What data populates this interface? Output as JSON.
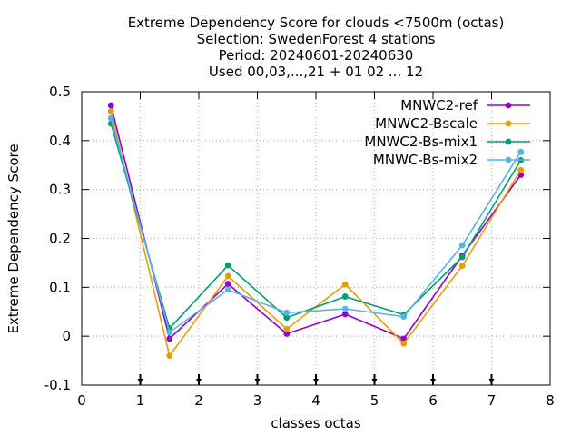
{
  "chart_data": {
    "type": "line",
    "title_lines": [
      "Extreme Dependency Score  for clouds <7500m (octas)",
      "Selection: SwedenForest      4 stations",
      "Period: 20240601-20240630",
      "Used 00,03,...,21 + 01 02 ... 12"
    ],
    "xlabel": "classes octas",
    "ylabel": "Extreme Dependency Score",
    "xlim": [
      0,
      8
    ],
    "ylim": [
      -0.1,
      0.5
    ],
    "x_ticks": [
      "0",
      "1",
      "2",
      "3",
      "4",
      "5",
      "6",
      "7",
      "8"
    ],
    "y_ticks": [
      "-0.1",
      "0",
      "0.1",
      "0.2",
      "0.3",
      "0.4",
      "0.5"
    ],
    "x_tick_values": [
      0,
      1,
      2,
      3,
      4,
      5,
      6,
      7,
      8
    ],
    "y_tick_values": [
      -0.1,
      0,
      0.1,
      0.2,
      0.3,
      0.4,
      0.5
    ],
    "grid": true,
    "legend_position": "top-right",
    "x": [
      0.5,
      1.5,
      2.5,
      3.5,
      4.5,
      5.5,
      6.5,
      7.5
    ],
    "series": [
      {
        "name": "MNWC2-ref",
        "color": "#9400d3",
        "values": [
          0.472,
          -0.005,
          0.107,
          0.005,
          0.045,
          -0.005,
          0.165,
          0.33
        ]
      },
      {
        "name": "MNWC2-Bscale",
        "color": "#e69f00",
        "values": [
          0.46,
          -0.04,
          0.123,
          0.015,
          0.106,
          -0.015,
          0.144,
          0.34
        ]
      },
      {
        "name": "MNWC2-Bs-mix1",
        "color": "#009e73",
        "values": [
          0.435,
          0.016,
          0.145,
          0.038,
          0.081,
          0.044,
          0.162,
          0.36
        ]
      },
      {
        "name": "MNWC-Bs-mix2",
        "color": "#56b4e9",
        "values": [
          0.446,
          0.008,
          0.095,
          0.048,
          0.056,
          0.04,
          0.186,
          0.377
        ]
      }
    ]
  }
}
